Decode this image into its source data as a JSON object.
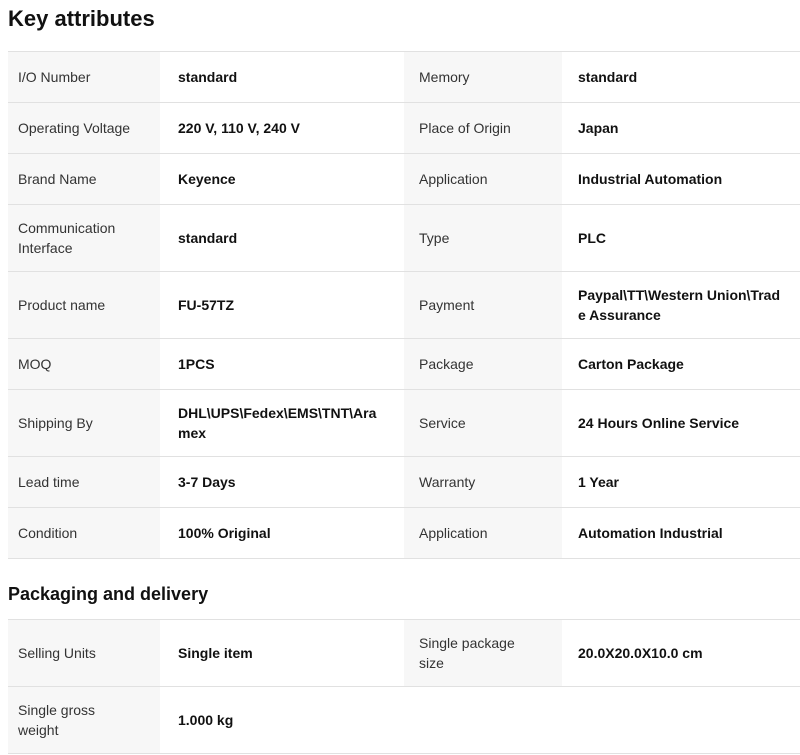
{
  "sections": [
    {
      "title": "Key attributes",
      "rows": [
        {
          "left_label": "I/O Number",
          "left_value": "standard",
          "right_label": "Memory",
          "right_value": "standard"
        },
        {
          "left_label": "Operating Voltage",
          "left_value": "220 V, 110 V, 240 V",
          "right_label": "Place of Origin",
          "right_value": "Japan"
        },
        {
          "left_label": "Brand Name",
          "left_value": "Keyence",
          "right_label": "Application",
          "right_value": "Industrial Automation"
        },
        {
          "left_label": "Communication Interface",
          "left_value": "standard",
          "right_label": "Type",
          "right_value": "PLC"
        },
        {
          "left_label": "Product name",
          "left_value": "FU-57TZ",
          "right_label": "Payment",
          "right_value": "Paypal\\TT\\Western Union\\Trade Assurance"
        },
        {
          "left_label": "MOQ",
          "left_value": "1PCS",
          "right_label": "Package",
          "right_value": "Carton Package"
        },
        {
          "left_label": "Shipping By",
          "left_value": "DHL\\UPS\\Fedex\\EMS\\TNT\\Aramex",
          "right_label": "Service",
          "right_value": "24 Hours Online Service"
        },
        {
          "left_label": "Lead time",
          "left_value": "3-7 Days",
          "right_label": "Warranty",
          "right_value": "1 Year"
        },
        {
          "left_label": "Condition",
          "left_value": "100% Original",
          "right_label": "Application",
          "right_value": "Automation Industrial"
        }
      ]
    },
    {
      "title": "Packaging and delivery",
      "rows": [
        {
          "left_label": "Selling Units",
          "left_value": "Single item",
          "right_label": "Single package size",
          "right_value": "20.0X20.0X10.0 cm"
        },
        {
          "left_label": "Single gross weight",
          "left_value": "1.000 kg",
          "right_label": "",
          "right_value": ""
        }
      ]
    }
  ],
  "colors": {
    "label_bg": "#f7f7f7",
    "border": "#e1e1e1",
    "label_text": "#333333",
    "value_text": "#111111",
    "heading_text": "#111111"
  }
}
